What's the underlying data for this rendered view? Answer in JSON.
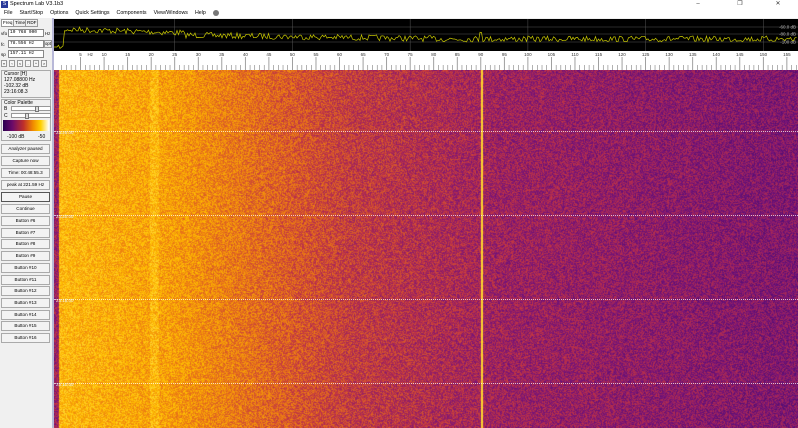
{
  "window": {
    "title": "Spectrum Lab V3.1b3",
    "minimize": "–",
    "restore": "❐",
    "close": "✕"
  },
  "menu": [
    "File",
    "Start/Stop",
    "Options",
    "Quick Settings",
    "Components",
    "View/Windows",
    "Help"
  ],
  "tabs": [
    "Freq",
    "Time",
    "RDF"
  ],
  "freq": {
    "vfo_label": "vfo",
    "vfo_value": "10 768 000",
    "vfo_unit": "Hz",
    "fc_label": "fc",
    "fc_value": "78.556 Hz",
    "opt_label": "opt",
    "sp_label": "sp",
    "sp_value": "157.11 Hz"
  },
  "nav_arrows": [
    "«",
    "‹",
    "<",
    ".",
    "^",
    ">"
  ],
  "cursor": {
    "title": "Cursor [H]",
    "freq": "127.08800 Hz",
    "level": "-102.32 dB",
    "time": "23:16:08.3"
  },
  "palette": {
    "title": "Color Palette",
    "b_label": "B",
    "c_label": "C",
    "b_level": 0.65,
    "c_level": 0.35,
    "min_label": "-100 dB",
    "max_label": "-50"
  },
  "buttons": {
    "analyzer": "Analyzer paused",
    "capture": "Capture now",
    "time": "Time:  00:48:55.3",
    "peak": "peak at 221.59 Hz",
    "pause": "Pause",
    "continue": "Continue",
    "custom": [
      "Button #6",
      "Button #7",
      "Button #8",
      "Button #9",
      "Button #10",
      "Button #11",
      "Button #12",
      "Button #13",
      "Button #14",
      "Button #15",
      "Button #16"
    ]
  },
  "spectrum": {
    "db_labels": [
      "-60.0 dB",
      "-80.0 dB",
      "-100 dB"
    ],
    "trace_color": "#c8c800"
  },
  "freq_axis": {
    "unit": "Hz",
    "ticks": [
      5,
      10,
      15,
      20,
      25,
      30,
      35,
      40,
      45,
      50,
      55,
      60,
      65,
      70,
      75,
      80,
      85,
      90,
      95,
      100,
      105,
      110,
      115,
      120,
      125,
      130,
      135,
      140,
      145,
      150,
      155
    ],
    "min_hz": 0,
    "max_hz": 158
  },
  "waterfall": {
    "time_labels": [
      "23:25:00",
      "23:20:00",
      "23:15:00",
      "23:10:00"
    ],
    "marker_hz": 90,
    "marker_color": "#ffb000"
  }
}
